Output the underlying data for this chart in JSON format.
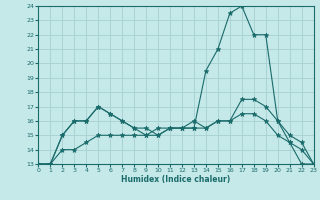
{
  "xlabel": "Humidex (Indice chaleur)",
  "bg_color": "#c5e8e8",
  "grid_color": "#a8d0d0",
  "line_color": "#1a6b6b",
  "xlim": [
    0,
    23
  ],
  "ylim": [
    13,
    24
  ],
  "yticks": [
    13,
    14,
    15,
    16,
    17,
    18,
    19,
    20,
    21,
    22,
    23,
    24
  ],
  "xticks": [
    0,
    1,
    2,
    3,
    4,
    5,
    6,
    7,
    8,
    9,
    10,
    11,
    12,
    13,
    14,
    15,
    16,
    17,
    18,
    19,
    20,
    21,
    22,
    23
  ],
  "line1_x": [
    0,
    1,
    2,
    3,
    4,
    5,
    6,
    7,
    8,
    9,
    10,
    11,
    12,
    13,
    14,
    15,
    16,
    17,
    18,
    19,
    20,
    21,
    22,
    23
  ],
  "line1_y": [
    13.0,
    13.0,
    15.0,
    16.0,
    16.0,
    17.0,
    16.5,
    16.0,
    15.5,
    15.5,
    15.0,
    15.5,
    15.5,
    16.0,
    15.5,
    16.0,
    16.0,
    17.5,
    17.5,
    17.0,
    16.0,
    15.0,
    14.5,
    13.0
  ],
  "line2_x": [
    0,
    1,
    2,
    3,
    4,
    5,
    6,
    7,
    8,
    9,
    10,
    11,
    12,
    13,
    14,
    15,
    16,
    17,
    18,
    19,
    20,
    21,
    22,
    23
  ],
  "line2_y": [
    13.0,
    13.0,
    15.0,
    16.0,
    16.0,
    17.0,
    16.5,
    16.0,
    15.5,
    15.0,
    15.0,
    15.5,
    15.5,
    15.5,
    19.5,
    21.0,
    23.5,
    24.0,
    22.0,
    22.0,
    16.0,
    14.5,
    13.0,
    13.0
  ],
  "line3_x": [
    0,
    1,
    2,
    3,
    4,
    5,
    6,
    7,
    8,
    9,
    10,
    11,
    12,
    13,
    14,
    15,
    16,
    17,
    18,
    19,
    20,
    21,
    22,
    23
  ],
  "line3_y": [
    13.0,
    13.0,
    14.0,
    14.0,
    14.5,
    15.0,
    15.0,
    15.0,
    15.0,
    15.0,
    15.5,
    15.5,
    15.5,
    15.5,
    15.5,
    16.0,
    16.0,
    16.5,
    16.5,
    16.0,
    15.0,
    14.5,
    14.0,
    13.0
  ]
}
